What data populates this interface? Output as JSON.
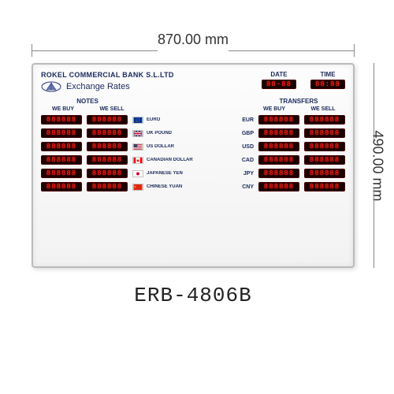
{
  "dimensions": {
    "width_label": "870.00 mm",
    "height_label": "490.00 mm"
  },
  "model_number": "ERB-4806B",
  "board": {
    "bank_name": "ROKEL COMMERCIAL BANK S.L.LTD",
    "title": "Exchange Rates",
    "date_label": "DATE",
    "time_label": "TIME",
    "date_value": "88-88",
    "time_value": "88:88",
    "section_notes": "NOTES",
    "section_transfers": "TRANSFERS",
    "col_we_buy": "WE BUY",
    "col_we_sell": "WE SELL",
    "led_placeholder": "888888",
    "colors": {
      "board_bg": "#f7f7f7",
      "led_bg": "#1a0000",
      "led_fg": "#ff2a1a",
      "text": "#1a2a5a"
    },
    "currencies": [
      {
        "name": "EURO",
        "code": "EUR",
        "flag_colors": [
          "#003399",
          "#ffcc00"
        ]
      },
      {
        "name": "UK POUND",
        "code": "GBP",
        "flag_colors": [
          "#012169",
          "#c8102e",
          "#ffffff"
        ]
      },
      {
        "name": "US DOLLAR",
        "code": "USD",
        "flag_colors": [
          "#b22234",
          "#ffffff",
          "#3c3b6e"
        ]
      },
      {
        "name": "CANADIAN DOLLAR",
        "code": "CAD",
        "flag_colors": [
          "#ff0000",
          "#ffffff"
        ]
      },
      {
        "name": "JAPANESE YEN",
        "code": "JPY",
        "flag_colors": [
          "#ffffff",
          "#bc002d"
        ]
      },
      {
        "name": "CHINESE YUAN",
        "code": "CNY",
        "flag_colors": [
          "#de2910",
          "#ffde00"
        ]
      }
    ]
  }
}
